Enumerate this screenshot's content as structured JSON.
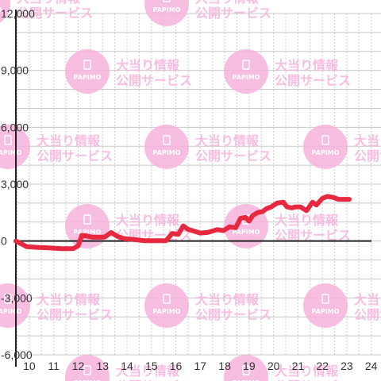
{
  "watermark": {
    "brand": "PAPIMO",
    "line1": "大当り情報",
    "line2": "公開サービス",
    "color": "#f7b3dd"
  },
  "chart_data": {
    "type": "line",
    "title": "",
    "xlabel": "",
    "ylabel": "",
    "x_ticks": [
      "10",
      "11",
      "12",
      "13",
      "14",
      "15",
      "16",
      "17",
      "18",
      "19",
      "20",
      "21",
      "22",
      "23",
      "24"
    ],
    "y_ticks": [
      "12,000",
      "9,000",
      "6,000",
      "3,000",
      "0",
      "-3,000",
      "-6,000"
    ],
    "xlim": [
      9.45,
      24.4
    ],
    "ylim": [
      -6000,
      12000
    ],
    "grid": true,
    "series": [
      {
        "color": "#e8283e",
        "x": [
          9.45,
          9.9,
          10.3,
          10.8,
          11.3,
          11.8,
          12.0,
          12.15,
          12.3,
          12.6,
          12.95,
          13.1,
          13.35,
          13.6,
          13.9,
          14.3,
          14.7,
          15.1,
          15.6,
          15.85,
          16.1,
          16.3,
          16.5,
          16.75,
          17.0,
          17.3,
          17.7,
          17.95,
          18.2,
          18.45,
          18.65,
          18.85,
          19.0,
          19.15,
          19.35,
          19.55,
          19.7,
          19.9,
          20.15,
          20.4,
          20.55,
          20.75,
          20.9,
          21.1,
          21.35,
          21.6,
          21.75,
          22.0,
          22.2,
          22.45,
          22.65,
          23.1
        ],
        "values": [
          0,
          -300,
          -330,
          -360,
          -400,
          -400,
          -250,
          300,
          280,
          200,
          200,
          220,
          450,
          250,
          120,
          80,
          20,
          20,
          20,
          400,
          350,
          800,
          620,
          520,
          420,
          450,
          600,
          550,
          750,
          700,
          1200,
          1250,
          1050,
          1350,
          1500,
          1550,
          1700,
          1800,
          2000,
          2050,
          1800,
          1750,
          1800,
          1800,
          1600,
          2050,
          1900,
          2250,
          2350,
          2300,
          2200,
          2200
        ]
      }
    ]
  }
}
